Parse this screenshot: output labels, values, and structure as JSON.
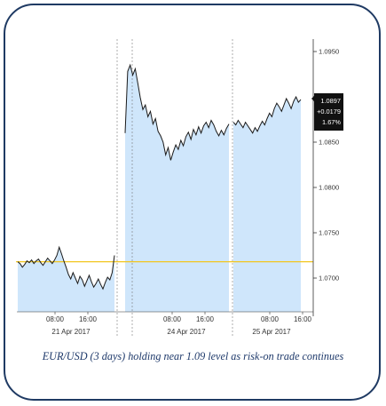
{
  "caption": "EUR/USD (3 days) holding near 1.09 level as risk-on trade continues",
  "colors": {
    "fill": "#cfe6fb",
    "line": "#1a1a1a",
    "reference": "#f2c61f",
    "border": "#1f3a63",
    "caption": "#1f3a6b",
    "box": "#111111"
  },
  "chart_data": {
    "type": "area",
    "title": "",
    "xlabel": "",
    "ylabel": "",
    "ylim": [
      1.0663,
      1.096
    ],
    "y_ticks": [
      "1.0950",
      "1.0850",
      "1.0800",
      "1.0750",
      "1.0700"
    ],
    "x_time_labels": [
      "08:00",
      "16:00",
      "08:00",
      "16:00",
      "08:00",
      "16:00"
    ],
    "x_date_labels": [
      "21 Apr 2017",
      "24 Apr 2017",
      "25 Apr 2017"
    ],
    "reference_line": 1.0718,
    "last_value_box": [
      "1.0897",
      "+0.0179",
      "1.67%"
    ],
    "series": [
      {
        "segments": [
          {
            "session": "21 Apr 2017",
            "values": [
              1.0718,
              1.0716,
              1.0712,
              1.0715,
              1.0719,
              1.0717,
              1.072,
              1.0716,
              1.0719,
              1.0721,
              1.0717,
              1.0714,
              1.0718,
              1.0722,
              1.0719,
              1.0716,
              1.072,
              1.0725,
              1.0734,
              1.0727,
              1.0719,
              1.0712,
              1.0704,
              1.0699,
              1.0706,
              1.07,
              1.0694,
              1.0702,
              1.0698,
              1.0691,
              1.0697,
              1.0703,
              1.0696,
              1.069,
              1.0694,
              1.0699,
              1.0693,
              1.0688,
              1.0695,
              1.0701,
              1.0698,
              1.0706,
              1.0725
            ]
          },
          {
            "session": "24 Apr 2017",
            "values": [
              1.086,
              1.0928,
              1.0935,
              1.0924,
              1.0931,
              1.0915,
              1.0899,
              1.0886,
              1.0891,
              1.0878,
              1.0884,
              1.087,
              1.0876,
              1.0862,
              1.0857,
              1.085,
              1.0836,
              1.0844,
              1.083,
              1.0839,
              1.0847,
              1.0842,
              1.0852,
              1.0846,
              1.0856,
              1.0861,
              1.0853,
              1.0864,
              1.0858,
              1.0867,
              1.086,
              1.0868,
              1.0872,
              1.0866,
              1.0874,
              1.0869,
              1.0862,
              1.0857,
              1.0863,
              1.0858,
              1.0865,
              1.087
            ]
          },
          {
            "session": "25 Apr 2017",
            "values": [
              1.0872,
              1.0869,
              1.0874,
              1.087,
              1.0866,
              1.0872,
              1.0868,
              1.0864,
              1.086,
              1.0866,
              1.0862,
              1.0868,
              1.0873,
              1.0869,
              1.0876,
              1.0882,
              1.0878,
              1.0887,
              1.0893,
              1.0889,
              1.0884,
              1.0891,
              1.0898,
              1.0893,
              1.0887,
              1.0895,
              1.09,
              1.0894,
              1.0897
            ]
          }
        ]
      }
    ]
  }
}
